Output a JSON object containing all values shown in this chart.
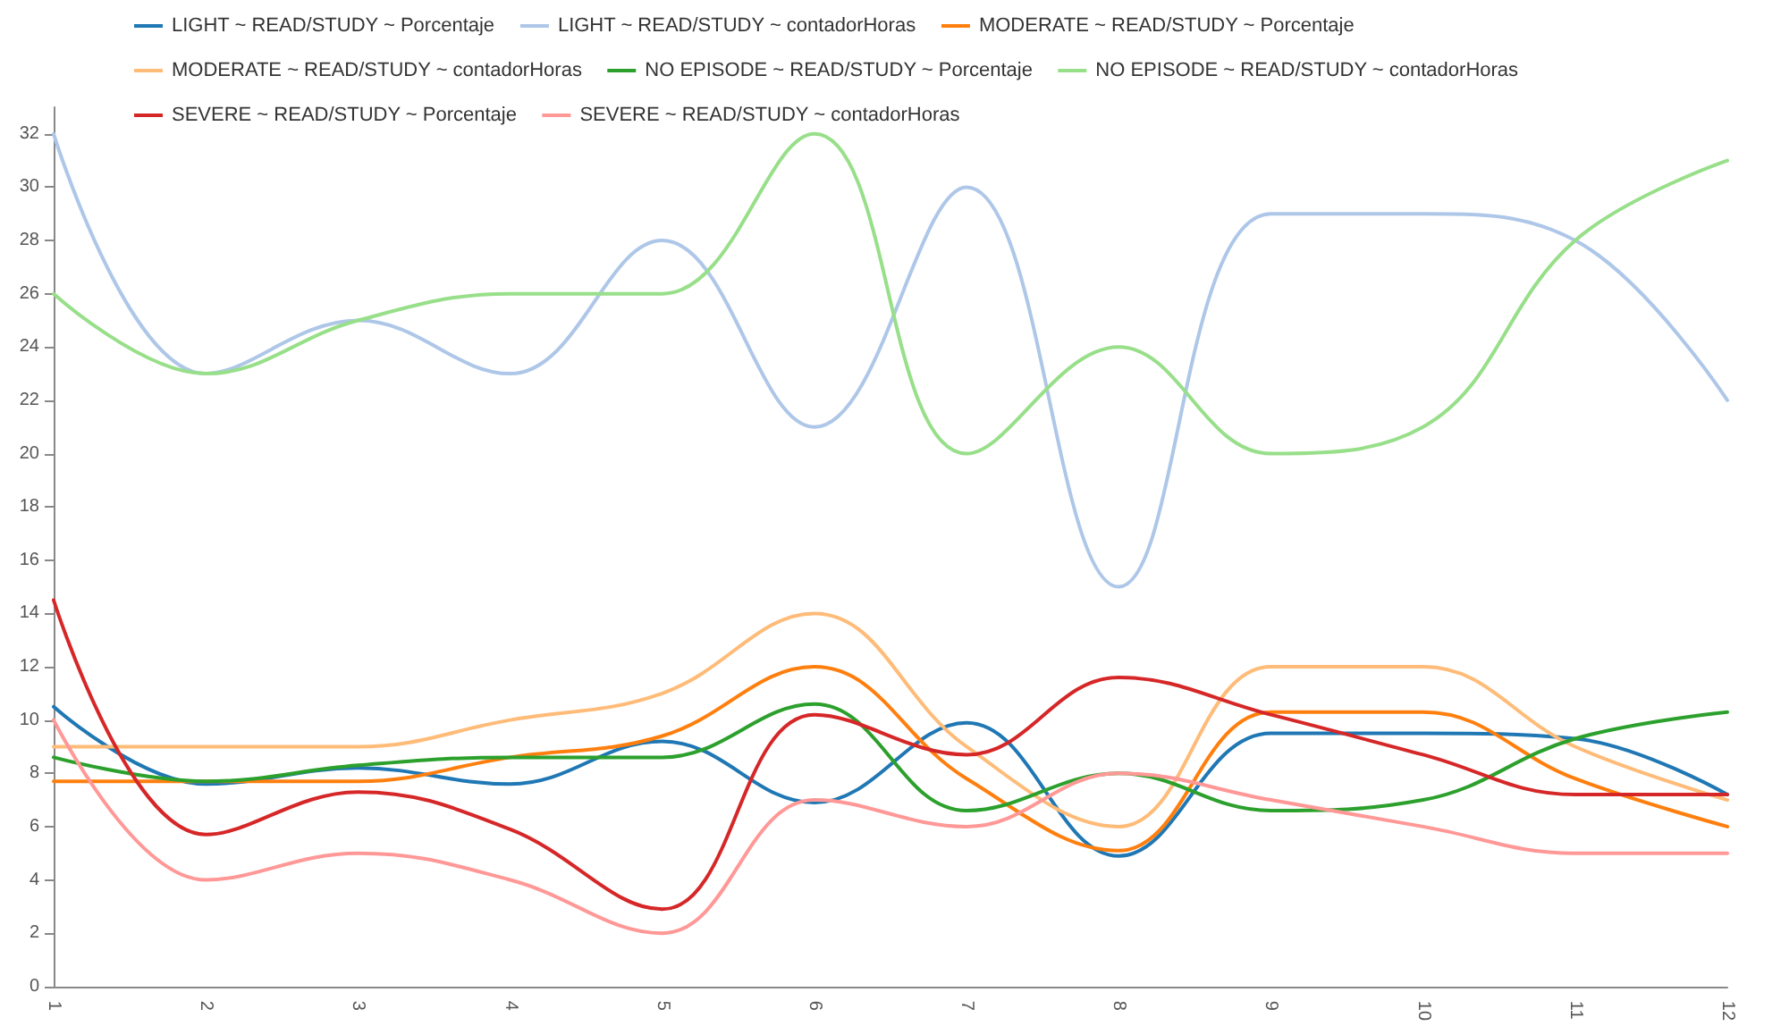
{
  "chart_data": {
    "type": "line",
    "categories": [
      "1",
      "2",
      "3",
      "4",
      "5",
      "6",
      "7",
      "8",
      "9",
      "10",
      "11",
      "12"
    ],
    "ylim": [
      0,
      33
    ],
    "yticks": [
      0,
      2,
      4,
      6,
      8,
      10,
      12,
      14,
      16,
      18,
      20,
      22,
      24,
      26,
      28,
      30,
      32
    ],
    "grid": false,
    "legend": "top",
    "marker": "none",
    "line_style": "solid",
    "series": [
      {
        "name": "LIGHT ~ READ/STUDY ~ Porcentaje",
        "color": "#1f77b4",
        "values": [
          10.5,
          7.6,
          8.2,
          7.6,
          9.2,
          6.9,
          9.9,
          4.9,
          9.5,
          9.5,
          9.3,
          7.2
        ]
      },
      {
        "name": "LIGHT ~ READ/STUDY ~ contadorHoras",
        "color": "#aec7e8",
        "values": [
          32,
          23,
          25,
          23,
          28,
          21,
          30,
          15,
          29,
          29,
          28,
          22
        ]
      },
      {
        "name": "MODERATE ~ READ/STUDY ~ Porcentaje",
        "color": "#ff7f0e",
        "values": [
          7.7,
          7.7,
          7.7,
          8.6,
          9.4,
          12,
          7.8,
          5.1,
          10.3,
          10.3,
          7.8,
          6.0
        ]
      },
      {
        "name": "MODERATE ~ READ/STUDY ~ contadorHoras",
        "color": "#ffbb78",
        "values": [
          9,
          9,
          9,
          10,
          11,
          14,
          9,
          6,
          12,
          12,
          9,
          7
        ]
      },
      {
        "name": "NO EPISODE ~ READ/STUDY ~ Porcentaje",
        "color": "#2ca02c",
        "values": [
          8.6,
          7.7,
          8.3,
          8.6,
          8.6,
          10.6,
          6.6,
          8.0,
          6.6,
          7.0,
          9.3,
          10.3
        ]
      },
      {
        "name": "NO EPISODE ~ READ/STUDY ~ contadorHoras",
        "color": "#98df8a",
        "values": [
          26,
          23,
          25,
          26,
          26,
          32,
          20,
          24,
          20,
          21,
          28,
          31
        ]
      },
      {
        "name": "SEVERE ~ READ/STUDY ~ Porcentaje",
        "color": "#d62728",
        "values": [
          14.5,
          5.7,
          7.3,
          5.9,
          2.9,
          10.2,
          8.7,
          11.6,
          10.2,
          8.7,
          7.2,
          7.2
        ]
      },
      {
        "name": "SEVERE ~ READ/STUDY ~ contadorHoras",
        "color": "#ff9896",
        "values": [
          10,
          4,
          5,
          4,
          2,
          7,
          6,
          8,
          7,
          6,
          5,
          5
        ]
      }
    ]
  }
}
